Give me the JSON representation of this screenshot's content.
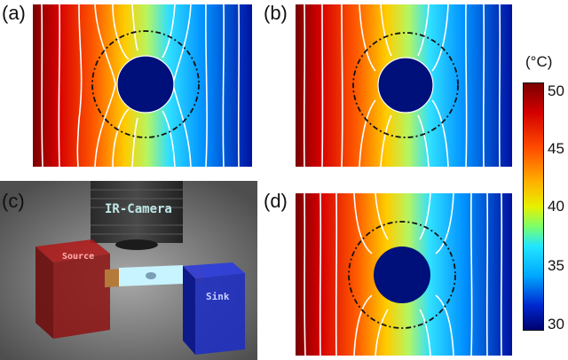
{
  "panels": {
    "a": {
      "label": "(a)"
    },
    "b": {
      "label": "(b)"
    },
    "c": {
      "label": "(c)",
      "camera_text": "IR-Camera",
      "source_text": "Source",
      "sink_text": "Sink"
    },
    "d": {
      "label": "(d)"
    }
  },
  "colorbar": {
    "unit": "(°C)",
    "ticks": [
      "50",
      "45",
      "40",
      "35",
      "30"
    ],
    "min": 30,
    "max": 50,
    "colors": {
      "hot": "#7a0000",
      "mid": "#e8f000",
      "cold": "#00006e"
    }
  }
}
